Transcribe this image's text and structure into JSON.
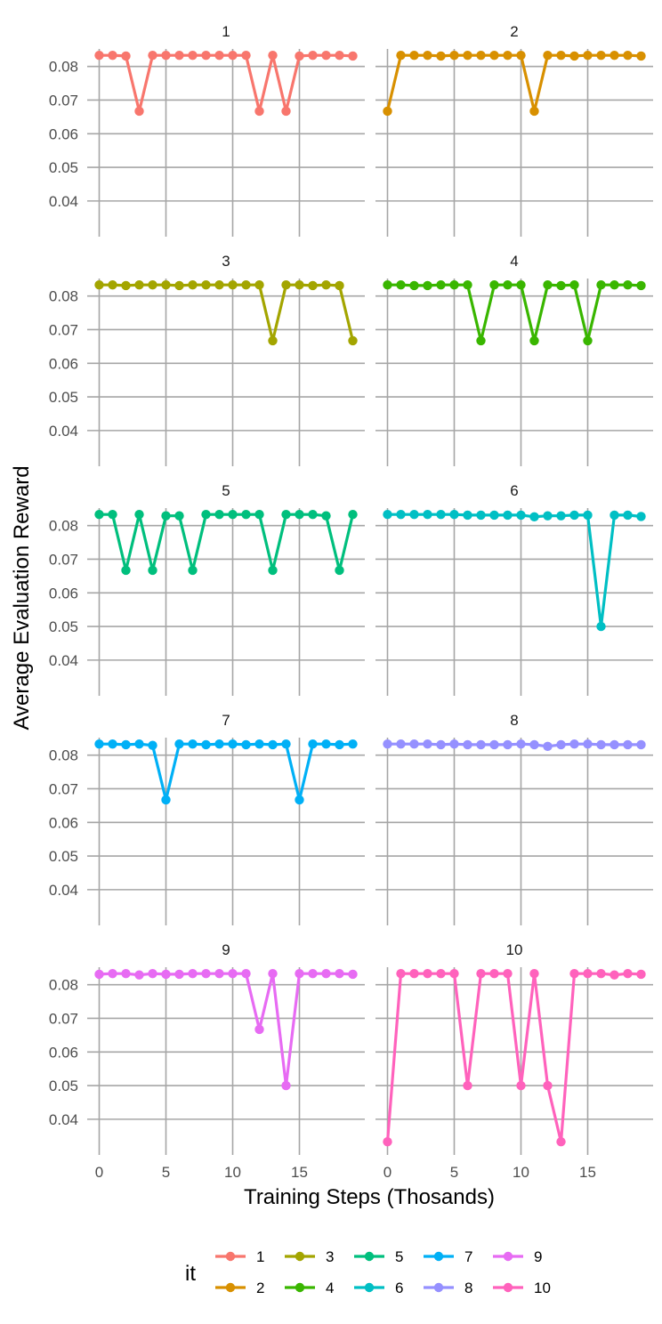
{
  "chart_data": {
    "type": "line",
    "xlabel": "Training Steps (Thosands)",
    "ylabel": "Average Evaluation Reward",
    "xlim": [
      -0.9,
      19.9
    ],
    "ylim": [
      0.0315,
      0.0852
    ],
    "x_ticks": [
      "0",
      "5",
      "10",
      "15"
    ],
    "y_ticks": [
      "0.04",
      "0.05",
      "0.06",
      "0.07",
      "0.08"
    ],
    "grid": true,
    "legend": {
      "title": "it",
      "position": "bottom"
    },
    "x": [
      0,
      1,
      2,
      3,
      4,
      5,
      6,
      7,
      8,
      9,
      10,
      11,
      12,
      13,
      14,
      15,
      16,
      17,
      18,
      19
    ],
    "series": [
      {
        "name": "1",
        "color": "#F8766D",
        "values": [
          0.0833,
          0.0833,
          0.0831,
          0.0667,
          0.0833,
          0.0833,
          0.0833,
          0.0833,
          0.0833,
          0.0833,
          0.0833,
          0.0833,
          0.0667,
          0.0833,
          0.0667,
          0.0831,
          0.0833,
          0.0833,
          0.0833,
          0.0831
        ]
      },
      {
        "name": "2",
        "color": "#D89000",
        "values": [
          0.0667,
          0.0833,
          0.0833,
          0.0833,
          0.0831,
          0.0833,
          0.0833,
          0.0833,
          0.0833,
          0.0833,
          0.0833,
          0.0667,
          0.0833,
          0.0833,
          0.0831,
          0.0833,
          0.0833,
          0.0833,
          0.0833,
          0.0831
        ]
      },
      {
        "name": "3",
        "color": "#A3A500",
        "values": [
          0.0833,
          0.0833,
          0.0831,
          0.0833,
          0.0833,
          0.0833,
          0.0831,
          0.0833,
          0.0833,
          0.0833,
          0.0833,
          0.0833,
          0.0833,
          0.0667,
          0.0833,
          0.0833,
          0.0831,
          0.0833,
          0.0831,
          0.0667
        ]
      },
      {
        "name": "4",
        "color": "#39B600",
        "values": [
          0.0833,
          0.0833,
          0.0831,
          0.0831,
          0.0833,
          0.0833,
          0.0833,
          0.0667,
          0.0833,
          0.0833,
          0.0833,
          0.0667,
          0.0833,
          0.0831,
          0.0833,
          0.0667,
          0.0833,
          0.0833,
          0.0833,
          0.0831
        ]
      },
      {
        "name": "5",
        "color": "#00BF7D",
        "values": [
          0.0833,
          0.0833,
          0.0667,
          0.0833,
          0.0667,
          0.0829,
          0.0829,
          0.0667,
          0.0833,
          0.0833,
          0.0833,
          0.0833,
          0.0833,
          0.0667,
          0.0833,
          0.0833,
          0.0833,
          0.0829,
          0.0667,
          0.0833
        ]
      },
      {
        "name": "6",
        "color": "#00BFC4",
        "values": [
          0.0833,
          0.0833,
          0.0833,
          0.0833,
          0.0833,
          0.0833,
          0.0831,
          0.0831,
          0.0831,
          0.0831,
          0.0831,
          0.0826,
          0.0829,
          0.0829,
          0.0831,
          0.0831,
          0.05,
          0.0831,
          0.0831,
          0.0827
        ]
      },
      {
        "name": "7",
        "color": "#00B0F6",
        "values": [
          0.0833,
          0.0833,
          0.0831,
          0.0833,
          0.0829,
          0.0667,
          0.0833,
          0.0833,
          0.0831,
          0.0833,
          0.0833,
          0.0831,
          0.0833,
          0.0831,
          0.0833,
          0.0667,
          0.0833,
          0.0833,
          0.0831,
          0.0833
        ]
      },
      {
        "name": "8",
        "color": "#9590FF",
        "values": [
          0.0833,
          0.0833,
          0.0833,
          0.0833,
          0.0831,
          0.0833,
          0.0831,
          0.0831,
          0.0831,
          0.0831,
          0.0833,
          0.0831,
          0.0826,
          0.0831,
          0.0833,
          0.0833,
          0.0831,
          0.0831,
          0.0831,
          0.0831
        ]
      },
      {
        "name": "9",
        "color": "#E76BF3",
        "values": [
          0.0831,
          0.0833,
          0.0833,
          0.0829,
          0.0833,
          0.0831,
          0.0831,
          0.0833,
          0.0833,
          0.0833,
          0.0833,
          0.0833,
          0.0667,
          0.0833,
          0.05,
          0.0833,
          0.0833,
          0.0833,
          0.0833,
          0.0831
        ]
      },
      {
        "name": "10",
        "color": "#FF62BC",
        "values": [
          0.0333,
          0.0833,
          0.0833,
          0.0833,
          0.0833,
          0.0833,
          0.05,
          0.0833,
          0.0833,
          0.0833,
          0.05,
          0.0833,
          0.05,
          0.0333,
          0.0833,
          0.0833,
          0.0833,
          0.0829,
          0.0833,
          0.0831
        ]
      }
    ]
  }
}
